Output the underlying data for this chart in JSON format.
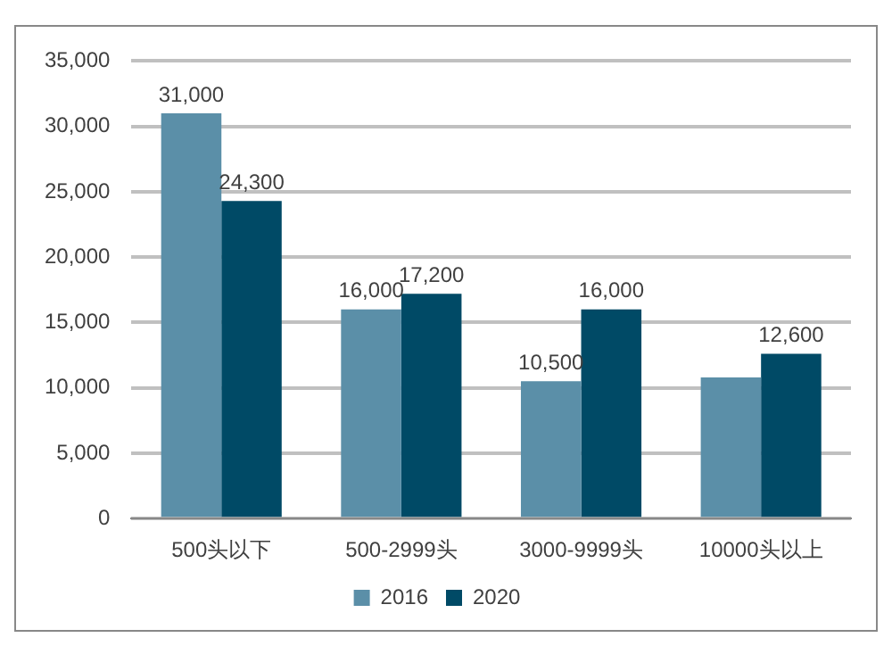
{
  "chart_data": {
    "type": "bar",
    "categories": [
      "500头以下",
      "500-2999头",
      "3000-9999头",
      "10000头以上"
    ],
    "series": [
      {
        "name": "2016",
        "color": "#5b8fa8",
        "values": [
          31000,
          16000,
          10500,
          10800
        ],
        "value_labels": [
          "31,000",
          "16,000",
          "10,500",
          null
        ]
      },
      {
        "name": "2020",
        "color": "#004a66",
        "values": [
          24300,
          17200,
          16000,
          12600
        ],
        "value_labels": [
          "24,300",
          "17,200",
          "16,000",
          "12,600"
        ]
      }
    ],
    "ylim": [
      0,
      35000
    ],
    "yticks": [
      {
        "value": 0,
        "label": "0"
      },
      {
        "value": 5000,
        "label": "5,000"
      },
      {
        "value": 10000,
        "label": "10,000"
      },
      {
        "value": 15000,
        "label": "15,000"
      },
      {
        "value": 20000,
        "label": "20,000"
      },
      {
        "value": 25000,
        "label": "25,000"
      },
      {
        "value": 30000,
        "label": "30,000"
      },
      {
        "value": 35000,
        "label": "35,000"
      }
    ],
    "grid": "y",
    "legend": "bottom"
  }
}
